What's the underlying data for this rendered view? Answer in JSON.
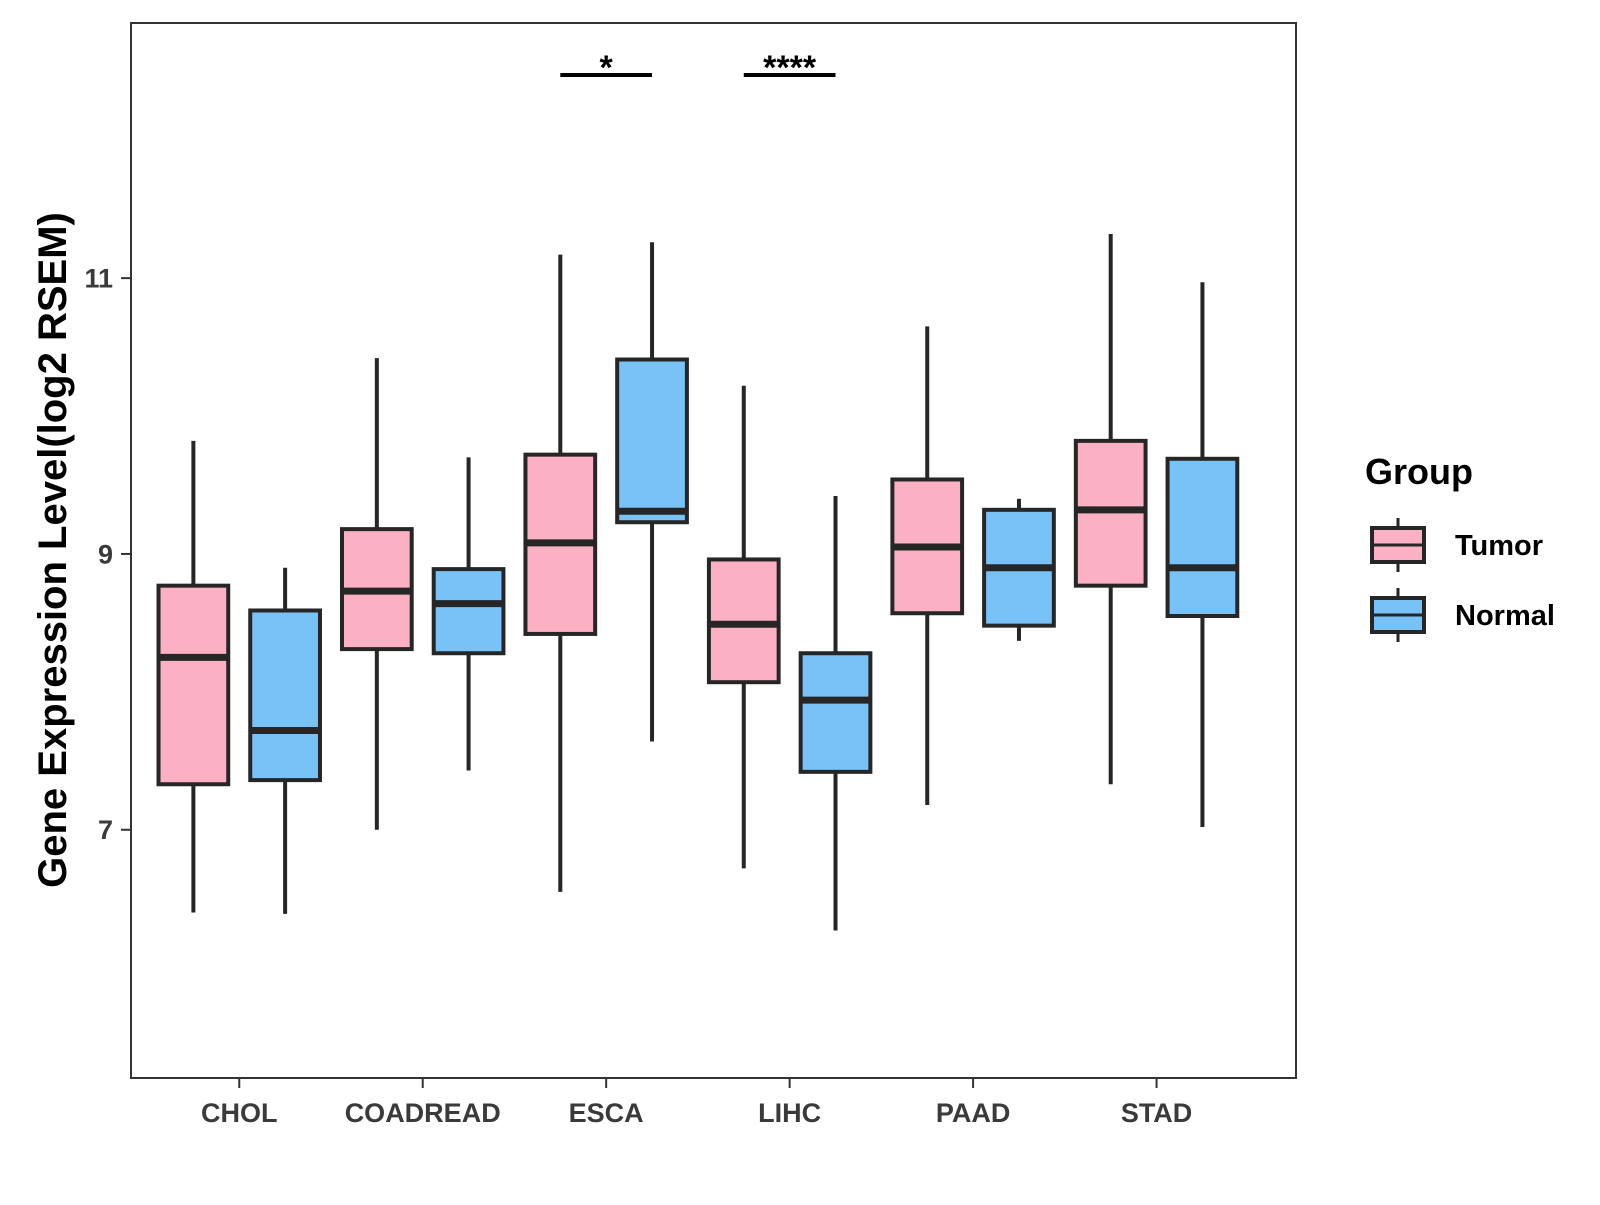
{
  "chart_data": {
    "type": "boxplot",
    "ylabel": "Gene Expression Level(log2 RSEM)",
    "xlabel": "",
    "ylim": [
      5.2,
      12.85
    ],
    "yticks": [
      7,
      9,
      11
    ],
    "grid": false,
    "legend": {
      "title": "Group",
      "placement": "right"
    },
    "categories": [
      "CHOL",
      "COADREAD",
      "ESCA",
      "LIHC",
      "PAAD",
      "STAD"
    ],
    "series": [
      {
        "name": "Tumor",
        "color": "#FBB1C3",
        "boxes": [
          {
            "min": 6.4,
            "q1": 7.33,
            "median": 8.25,
            "q3": 8.77,
            "max": 9.82
          },
          {
            "min": 7.0,
            "q1": 8.31,
            "median": 8.73,
            "q3": 9.18,
            "max": 10.42
          },
          {
            "min": 6.55,
            "q1": 8.42,
            "median": 9.08,
            "q3": 9.72,
            "max": 11.17
          },
          {
            "min": 6.72,
            "q1": 8.07,
            "median": 8.49,
            "q3": 8.96,
            "max": 10.22
          },
          {
            "min": 7.18,
            "q1": 8.57,
            "median": 9.05,
            "q3": 9.54,
            "max": 10.65
          },
          {
            "min": 7.33,
            "q1": 8.77,
            "median": 9.32,
            "q3": 9.82,
            "max": 11.32
          }
        ]
      },
      {
        "name": "Normal",
        "color": "#79C2F8",
        "boxes": [
          {
            "min": 6.39,
            "q1": 7.36,
            "median": 7.72,
            "q3": 8.59,
            "max": 8.9
          },
          {
            "min": 7.43,
            "q1": 8.28,
            "median": 8.64,
            "q3": 8.89,
            "max": 9.7
          },
          {
            "min": 7.64,
            "q1": 9.23,
            "median": 9.31,
            "q3": 10.41,
            "max": 11.26
          },
          {
            "min": 6.27,
            "q1": 7.42,
            "median": 7.94,
            "q3": 8.28,
            "max": 9.42
          },
          {
            "min": 8.37,
            "q1": 8.48,
            "median": 8.9,
            "q3": 9.32,
            "max": 9.4
          },
          {
            "min": 7.02,
            "q1": 8.55,
            "median": 8.9,
            "q3": 9.69,
            "max": 10.97
          }
        ]
      }
    ],
    "annotations": [
      {
        "category": "ESCA",
        "label": "*"
      },
      {
        "category": "LIHC",
        "label": "****"
      }
    ]
  }
}
